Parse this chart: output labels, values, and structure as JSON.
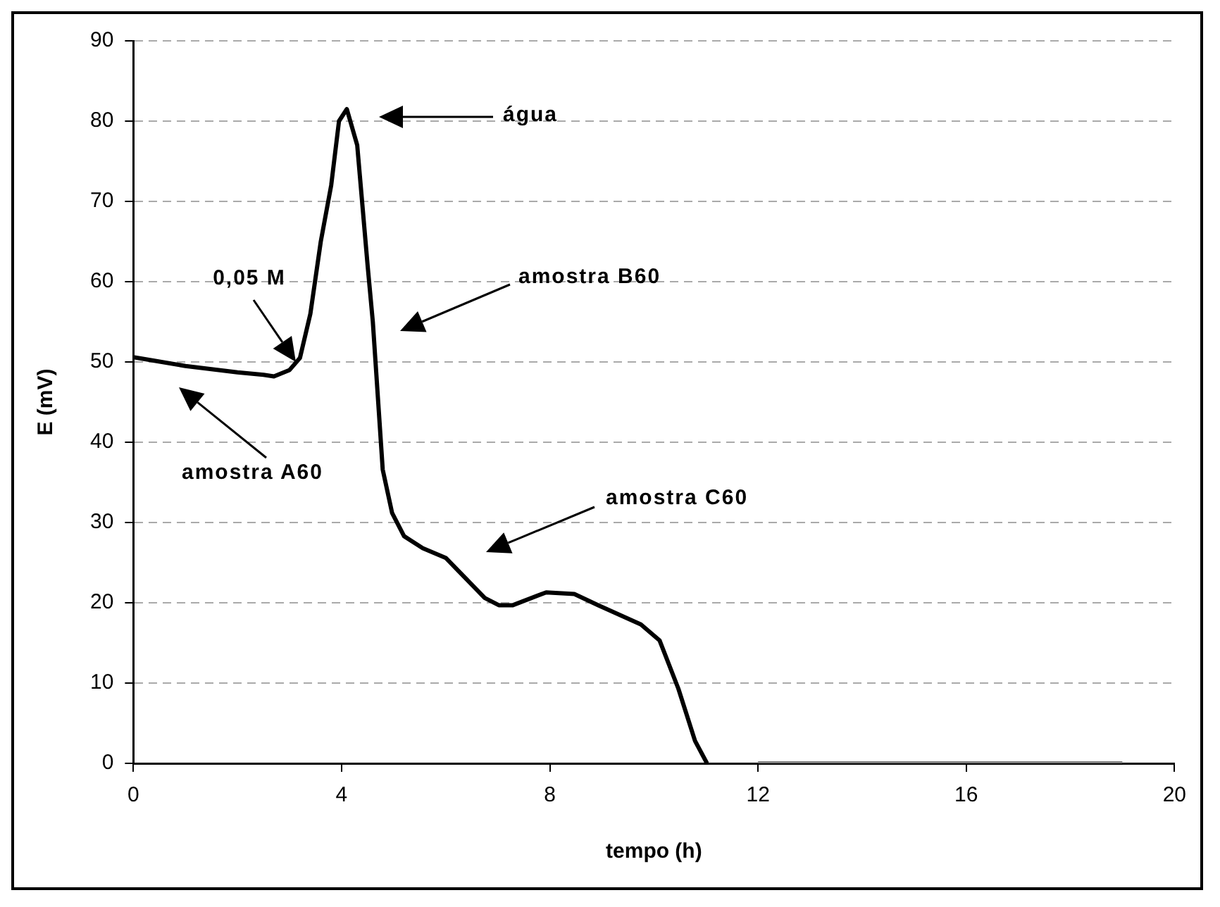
{
  "chart_data": {
    "type": "line",
    "xlabel": "tempo (h)",
    "ylabel": "E (mV)",
    "xlim": [
      0,
      20
    ],
    "xticks": [
      0,
      4,
      8,
      12,
      16,
      20
    ],
    "ylim": [
      0,
      90
    ],
    "yticks": [
      0,
      10,
      20,
      30,
      40,
      50,
      60,
      70,
      80,
      90
    ],
    "grid": "y",
    "legend": false,
    "marker": "none",
    "line_style": "solid",
    "series": [
      {
        "color": "#000000",
        "x": [
          0,
          1,
          2,
          2.5,
          2.7,
          3,
          3.2,
          3.4,
          3.6,
          3.8,
          3.95,
          4.1,
          4.3,
          4.5,
          4.6,
          4.79,
          4.97,
          5.2,
          5.56,
          6,
          6.75,
          7.02,
          7.29,
          7.93,
          8.47,
          8.93,
          9.75,
          10.11,
          10.47,
          10.79,
          11.02
        ],
        "values": [
          50.6,
          49.5,
          48.7,
          48.4,
          48.2,
          49,
          50.5,
          56,
          65,
          72,
          80,
          81.5,
          77,
          62,
          55,
          36.6,
          31.2,
          28.3,
          26.8,
          25.6,
          20.6,
          19.7,
          19.7,
          21.3,
          21.1,
          19.7,
          17.3,
          15.3,
          9.3,
          2.8,
          0
        ]
      },
      {
        "color": "#808080",
        "x": [
          12,
          19
        ],
        "values": [
          0,
          0
        ]
      }
    ],
    "annotations": [
      "água",
      "0,05 M",
      "amostra B60",
      "amostra A60",
      "amostra C60"
    ]
  }
}
